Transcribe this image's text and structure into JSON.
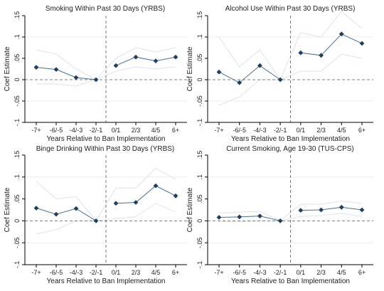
{
  "colors": {
    "series": "#1f3f5f",
    "line": "#4a6f8f",
    "ci": "#dde4ea",
    "zero": "#555555",
    "axis": "#000000",
    "grid": "#eeeeee"
  },
  "chart_data": [
    {
      "type": "line",
      "title": "Smoking Within Past 30 Days (YRBS)",
      "xlabel": "Years Relative to Ban Implementation",
      "ylabel": "Coef Estimate",
      "categories": [
        "-7+",
        "-6/-5",
        "-4/-3",
        "-2/-1",
        "0/1",
        "2/3",
        "4/5",
        "6+"
      ],
      "yticks": [
        "-.1",
        "-.05",
        "0",
        ".05",
        ".1",
        ".15"
      ],
      "ylim": [
        -0.1,
        0.15
      ],
      "grid": false,
      "legend": "none",
      "divider_after_category": "-2/-1",
      "reference_line_y": 0,
      "values": [
        0.029,
        0.024,
        0.005,
        0.0,
        0.033,
        0.053,
        0.044,
        0.053
      ],
      "ci_low": [
        -0.01,
        -0.01,
        -0.015,
        0.0,
        0.02,
        0.03,
        0.025,
        0.03
      ],
      "ci_high": [
        0.07,
        0.06,
        0.025,
        0.0,
        0.05,
        0.075,
        0.065,
        0.075
      ]
    },
    {
      "type": "line",
      "title": "Alcohol Use Within Past 30 Days (YRBS)",
      "xlabel": "Years Relative to Ban Implementation",
      "ylabel": "Coef Estimate",
      "categories": [
        "-7+",
        "-6/-5",
        "-4/-3",
        "-2/-1",
        "0/1",
        "2/3",
        "4/5",
        "6+"
      ],
      "yticks": [
        "-.1",
        "-.05",
        "0",
        ".05",
        ".1",
        ".15"
      ],
      "ylim": [
        -0.1,
        0.15
      ],
      "grid": false,
      "legend": "none",
      "divider_after_category": "-2/-1",
      "reference_line_y": 0,
      "values": [
        0.018,
        -0.007,
        0.033,
        0.0,
        0.063,
        0.057,
        0.107,
        0.085
      ],
      "ci_low": [
        -0.06,
        -0.04,
        0.0,
        0.0,
        0.02,
        0.02,
        0.06,
        0.05
      ],
      "ci_high": [
        0.1,
        0.03,
        0.07,
        0.0,
        0.11,
        0.1,
        0.16,
        0.12
      ]
    },
    {
      "type": "line",
      "title": "Binge Drinking Within Past 30 Days (YRBS)",
      "xlabel": "Years Relative to Ban Implementation",
      "ylabel": "Coef Estimate",
      "categories": [
        "-7+",
        "-6/-5",
        "-4/-3",
        "-2/-1",
        "0/1",
        "2/3",
        "4/5",
        "6+"
      ],
      "yticks": [
        "-.1",
        "-.05",
        "0",
        ".05",
        ".1",
        ".15"
      ],
      "ylim": [
        -0.1,
        0.15
      ],
      "grid": false,
      "legend": "none",
      "divider_after_category": "-2/-1",
      "reference_line_y": 0,
      "values": [
        0.029,
        0.015,
        0.028,
        0.0,
        0.04,
        0.042,
        0.08,
        0.057
      ],
      "ci_low": [
        -0.03,
        -0.02,
        0.0,
        0.0,
        0.005,
        0.01,
        0.04,
        0.02
      ],
      "ci_high": [
        0.09,
        0.05,
        0.055,
        0.0,
        0.075,
        0.075,
        0.12,
        0.095
      ]
    },
    {
      "type": "line",
      "title": "Current Smoking, Age 19-30 (TUS-CPS)",
      "xlabel": "Years Relative to Ban Implementation",
      "ylabel": "Coef Estimate",
      "categories": [
        "-7+",
        "-6/-5",
        "-4/-3",
        "-2/-1",
        "0/1",
        "2/3",
        "4/5",
        "6+"
      ],
      "yticks": [
        "-.1",
        "-.05",
        "0",
        ".05",
        ".1",
        ".15"
      ],
      "ylim": [
        -0.1,
        0.15
      ],
      "grid": false,
      "legend": "none",
      "divider_after_category": "-2/-1",
      "reference_line_y": 0,
      "values": [
        0.008,
        0.009,
        0.011,
        0.0,
        0.024,
        0.025,
        0.031,
        0.025
      ],
      "ci_low": [
        -0.002,
        -0.002,
        0.0,
        0.0,
        0.01,
        0.012,
        0.017,
        0.01
      ],
      "ci_high": [
        0.018,
        0.02,
        0.022,
        0.0,
        0.038,
        0.038,
        0.045,
        0.04
      ]
    }
  ]
}
